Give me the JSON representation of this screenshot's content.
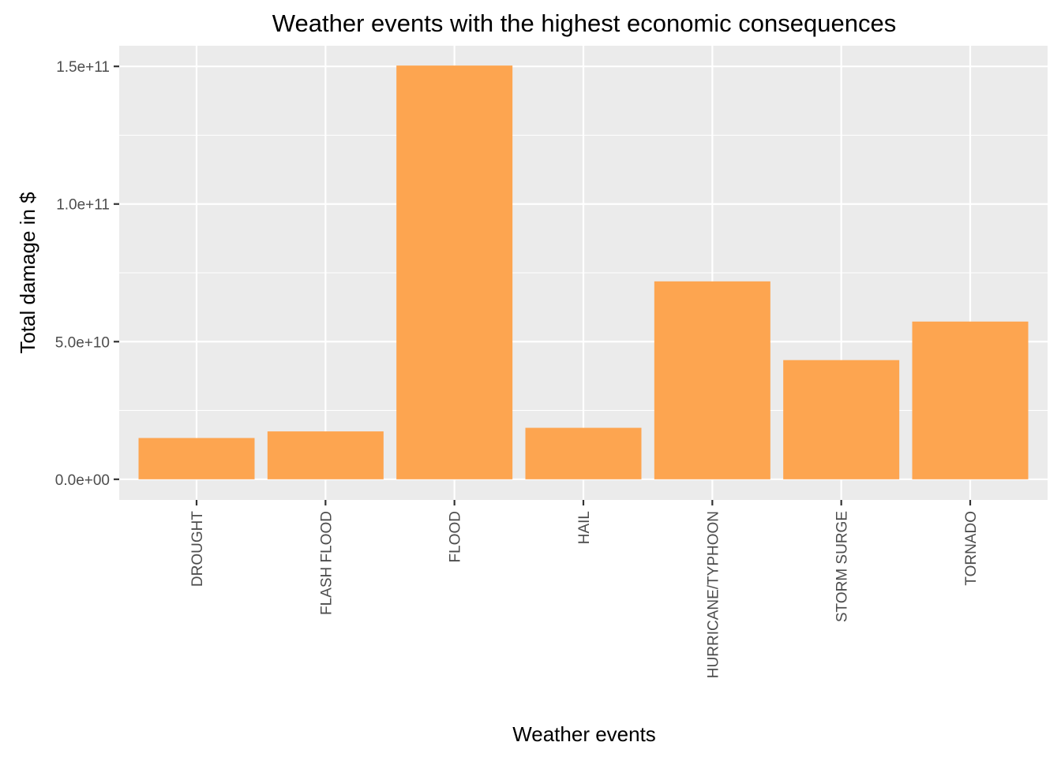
{
  "chart_data": {
    "type": "bar",
    "title": "Weather events with the highest economic consequences",
    "xlabel": "Weather events",
    "ylabel": "Total damage in $",
    "categories": [
      "DROUGHT",
      "FLASH FLOOD",
      "FLOOD",
      "HAIL",
      "HURRICANE/TYPHOON",
      "STORM SURGE",
      "TORNADO"
    ],
    "values": [
      15000000000,
      17400000000,
      150300000000,
      18700000000,
      71900000000,
      43300000000,
      57300000000
    ],
    "ylim": [
      -7500000000,
      157500000000
    ],
    "yticks": [
      0,
      50000000000,
      100000000000,
      150000000000
    ],
    "ytick_labels": [
      "0.0e+00",
      "5.0e+10",
      "1.0e+11",
      "1.5e+11"
    ],
    "grid": true,
    "bar_color": "#FDA550",
    "panel_color": "#EBEBEB",
    "grid_color": "#FFFFFF"
  }
}
